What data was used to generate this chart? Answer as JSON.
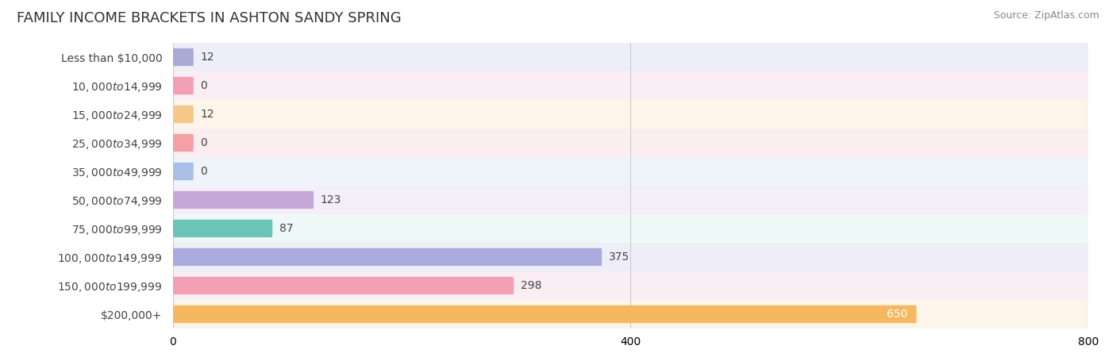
{
  "title": "FAMILY INCOME BRACKETS IN ASHTON SANDY SPRING",
  "source": "Source: ZipAtlas.com",
  "categories": [
    "Less than $10,000",
    "$10,000 to $14,999",
    "$15,000 to $24,999",
    "$25,000 to $34,999",
    "$35,000 to $49,999",
    "$50,000 to $74,999",
    "$75,000 to $99,999",
    "$100,000 to $149,999",
    "$150,000 to $199,999",
    "$200,000+"
  ],
  "values": [
    12,
    0,
    12,
    0,
    0,
    123,
    87,
    375,
    298,
    650
  ],
  "bar_colors": [
    "#aaaad4",
    "#f4a0b4",
    "#f5c88a",
    "#f4a0a4",
    "#a8c0e8",
    "#c4a8d8",
    "#6cc4b8",
    "#aaaadc",
    "#f4a0b4",
    "#f5b860"
  ],
  "row_bg_colors": [
    "#eeeef8",
    "#faeef4",
    "#fdf4ea",
    "#faeef0",
    "#eef4fa",
    "#f4eef8",
    "#eef8f6",
    "#eeeef8",
    "#faeef4",
    "#fdf4ea"
  ],
  "xlim": [
    0,
    800
  ],
  "xticks": [
    0,
    400,
    800
  ],
  "background_color": "#ffffff",
  "bar_height": 0.62,
  "title_fontsize": 13,
  "label_fontsize": 10,
  "value_fontsize": 10,
  "source_fontsize": 9,
  "min_stub": 18
}
